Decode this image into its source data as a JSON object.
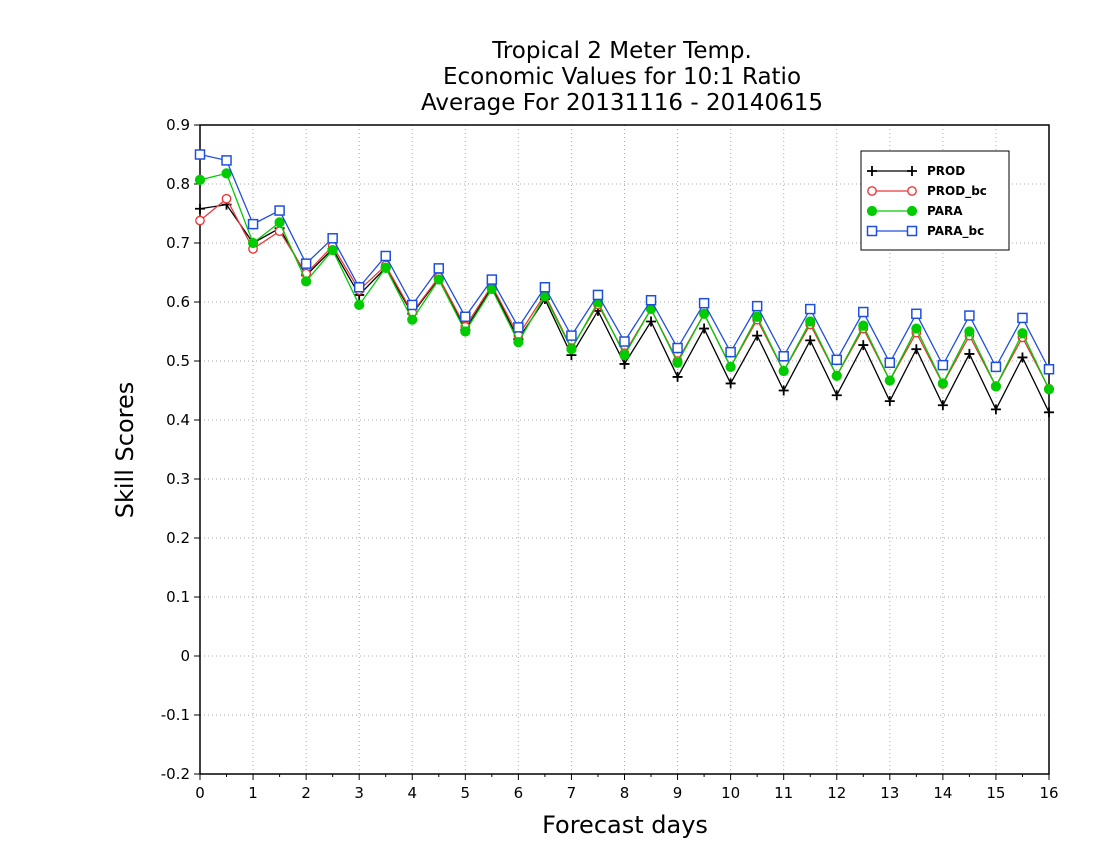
{
  "chart_data": {
    "type": "line",
    "title": [
      "Tropical 2 Meter Temp.",
      "Economic Values for 10:1 Ratio",
      "Average For 20131116 - 20140615"
    ],
    "xlabel": "Forecast days",
    "ylabel": "Skill Scores",
    "xlim": [
      0,
      16
    ],
    "ylim": [
      -0.2,
      0.9
    ],
    "xticks": [
      "0",
      "1",
      "2",
      "3",
      "4",
      "5",
      "6",
      "7",
      "8",
      "9",
      "10",
      "11",
      "12",
      "13",
      "14",
      "15",
      "16"
    ],
    "yticks": [
      "0.9",
      "0.8",
      "0.7",
      "0.6",
      "0.5",
      "0.4",
      "0.3",
      "0.2",
      "0.1",
      "0",
      "-0.1",
      "-0.2"
    ],
    "grid": true,
    "legend_position": "top-right",
    "x": [
      0,
      0.5,
      1,
      1.5,
      2,
      2.5,
      3,
      3.5,
      4,
      4.5,
      5,
      5.5,
      6,
      6.5,
      7,
      7.5,
      8,
      8.5,
      9,
      9.5,
      10,
      10.5,
      11,
      11.5,
      12,
      12.5,
      13,
      13.5,
      14,
      14.5,
      15,
      15.5,
      16
    ],
    "series": [
      {
        "name": "PROD",
        "color": "#000000",
        "marker": "plus",
        "values": [
          0.758,
          0.765,
          0.7,
          0.725,
          0.645,
          0.69,
          0.612,
          0.658,
          0.58,
          0.64,
          0.553,
          0.625,
          0.537,
          0.605,
          0.51,
          0.585,
          0.495,
          0.567,
          0.473,
          0.555,
          0.462,
          0.543,
          0.45,
          0.535,
          0.442,
          0.527,
          0.432,
          0.52,
          0.425,
          0.512,
          0.418,
          0.506,
          0.413
        ]
      },
      {
        "name": "PROD_bc",
        "color": "#e8393b",
        "marker": "circle-open",
        "values": [
          0.738,
          0.775,
          0.69,
          0.72,
          0.648,
          0.695,
          0.62,
          0.662,
          0.582,
          0.642,
          0.558,
          0.628,
          0.543,
          0.613,
          0.522,
          0.596,
          0.513,
          0.588,
          0.5,
          0.58,
          0.49,
          0.57,
          0.483,
          0.562,
          0.475,
          0.555,
          0.467,
          0.548,
          0.461,
          0.543,
          0.457,
          0.54,
          0.453
        ]
      },
      {
        "name": "PARA",
        "color": "#00cc00",
        "marker": "circle-filled",
        "values": [
          0.807,
          0.818,
          0.7,
          0.735,
          0.635,
          0.688,
          0.595,
          0.658,
          0.57,
          0.638,
          0.55,
          0.622,
          0.532,
          0.61,
          0.52,
          0.6,
          0.51,
          0.588,
          0.497,
          0.58,
          0.49,
          0.575,
          0.483,
          0.567,
          0.475,
          0.56,
          0.467,
          0.555,
          0.462,
          0.55,
          0.457,
          0.547,
          0.452
        ]
      },
      {
        "name": "PARA_bc",
        "color": "#1f4fe0",
        "marker": "square-open",
        "values": [
          0.85,
          0.84,
          0.732,
          0.755,
          0.665,
          0.708,
          0.625,
          0.678,
          0.595,
          0.657,
          0.575,
          0.638,
          0.557,
          0.625,
          0.543,
          0.612,
          0.533,
          0.603,
          0.522,
          0.598,
          0.515,
          0.593,
          0.508,
          0.588,
          0.502,
          0.583,
          0.497,
          0.58,
          0.493,
          0.577,
          0.49,
          0.573,
          0.486
        ]
      }
    ]
  }
}
